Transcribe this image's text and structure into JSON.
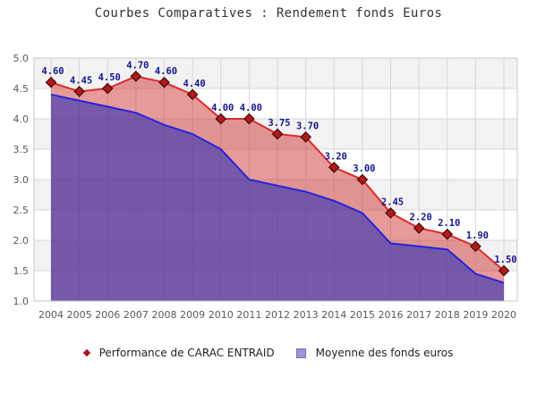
{
  "title": "Courbes Comparatives : Rendement fonds Euros",
  "legend": {
    "items": [
      {
        "label": "Performance de CARAC ENTRAID",
        "marker": "diamond-icon",
        "color": "#a51616"
      },
      {
        "label": "Moyenne des fonds euros",
        "marker": "square-icon",
        "color": "#9898dc"
      }
    ],
    "position": "bottom"
  },
  "colors": {
    "band_gray": "#f2f2f2",
    "band_white": "#ffffff",
    "gridline": "#d7d7d7",
    "plot_border": "#c8c8c8",
    "axis_label": "#5a5a5a",
    "data_label": "#14148f",
    "performance_line": "#e12929",
    "performance_fill": "rgba(204,44,44,0.48)",
    "performance_marker_fill": "#b21919",
    "performance_marker_stroke": "#420a0a",
    "average_line": "#2424dd",
    "average_fill": "rgba(85,48,148,0.80)"
  },
  "chart_data": {
    "type": "line",
    "title": "Courbes Comparatives : Rendement fonds Euros",
    "x": [
      2004,
      2005,
      2006,
      2007,
      2008,
      2009,
      2010,
      2011,
      2012,
      2013,
      2014,
      2015,
      2016,
      2017,
      2018,
      2019,
      2020
    ],
    "series": [
      {
        "name": "Performance de CARAC ENTRAID",
        "type": "line+markers+labels",
        "marker": "diamond",
        "values": [
          4.6,
          4.45,
          4.5,
          4.7,
          4.6,
          4.4,
          4.0,
          4.0,
          3.75,
          3.7,
          3.2,
          3.0,
          2.45,
          2.2,
          2.1,
          1.9,
          1.5
        ]
      },
      {
        "name": "Moyenne des fonds euros",
        "type": "area",
        "values": [
          4.4,
          4.3,
          4.2,
          4.1,
          3.9,
          3.75,
          3.5,
          3.0,
          2.9,
          2.8,
          2.65,
          2.45,
          1.95,
          1.9,
          1.85,
          1.45,
          1.3
        ]
      }
    ],
    "xlabel": "",
    "ylabel": "",
    "ylim": [
      1.0,
      5.0
    ],
    "ytick_step": 0.5,
    "yticks": [
      "5.0",
      "4.5",
      "4.0",
      "3.5",
      "3.0",
      "2.5",
      "2.0",
      "1.5",
      "1.0"
    ],
    "grid": "on",
    "band_fill": "alternating",
    "legend_position": "bottom"
  }
}
